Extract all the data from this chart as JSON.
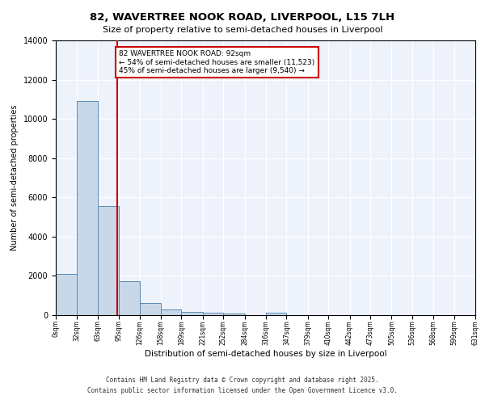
{
  "title_line1": "82, WAVERTREE NOOK ROAD, LIVERPOOL, L15 7LH",
  "title_line2": "Size of property relative to semi-detached houses in Liverpool",
  "xlabel": "Distribution of semi-detached houses by size in Liverpool",
  "ylabel": "Number of semi-detached properties",
  "bar_edges": [
    0,
    32,
    63,
    95,
    126,
    158,
    189,
    221,
    252,
    284,
    316,
    347,
    379,
    410,
    442,
    473,
    505,
    536,
    568,
    599,
    631
  ],
  "bar_heights": [
    2100,
    10900,
    5550,
    1750,
    620,
    280,
    150,
    110,
    80,
    20,
    110,
    0,
    0,
    0,
    0,
    0,
    0,
    0,
    0,
    0
  ],
  "bar_color": "#c8d8e8",
  "bar_edge_color": "#5a8ab0",
  "property_size": 92,
  "vline_color": "#cc0000",
  "annotation_text": "82 WAVERTREE NOOK ROAD: 92sqm\n← 54% of semi-detached houses are smaller (11,523)\n45% of semi-detached houses are larger (9,540) →",
  "annotation_box_color": "#cc0000",
  "ylim": [
    0,
    14000
  ],
  "yticks": [
    0,
    2000,
    4000,
    6000,
    8000,
    10000,
    12000,
    14000
  ],
  "background_color": "#eef2fb",
  "footer_line1": "Contains HM Land Registry data © Crown copyright and database right 2025.",
  "footer_line2": "Contains public sector information licensed under the Open Government Licence v3.0."
}
